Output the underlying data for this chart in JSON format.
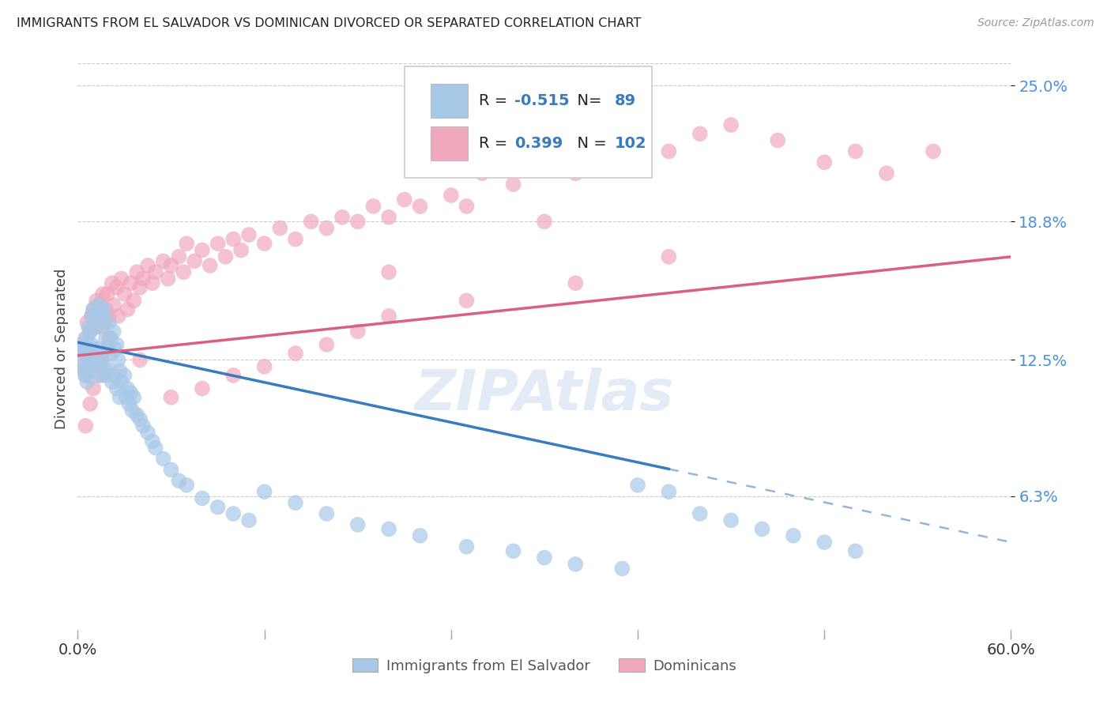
{
  "title": "IMMIGRANTS FROM EL SALVADOR VS DOMINICAN DIVORCED OR SEPARATED CORRELATION CHART",
  "source": "Source: ZipAtlas.com",
  "ylabel": "Divorced or Separated",
  "xlabel_blue": "Immigrants from El Salvador",
  "xlabel_pink": "Dominicans",
  "x_min": 0.0,
  "x_max": 0.6,
  "y_min": 0.0,
  "y_max": 0.26,
  "y_ticks": [
    0.063,
    0.125,
    0.188,
    0.25
  ],
  "y_tick_labels": [
    "6.3%",
    "12.5%",
    "18.8%",
    "25.0%"
  ],
  "legend_blue_R": "-0.515",
  "legend_blue_N": "89",
  "legend_pink_R": "0.399",
  "legend_pink_N": "102",
  "blue_color": "#a8c8e8",
  "pink_color": "#f0a8bc",
  "blue_line_color": "#3a7abf",
  "pink_line_color": "#d96080",
  "watermark": "ZIPAtlas",
  "blue_line_solid_end": 0.38,
  "blue_line_x0": 0.0,
  "blue_line_y0": 0.133,
  "blue_line_x1": 0.6,
  "blue_line_y1": 0.042,
  "pink_line_x0": 0.0,
  "pink_line_y0": 0.127,
  "pink_line_x1": 0.6,
  "pink_line_y1": 0.172,
  "blue_scatter_x": [
    0.002,
    0.003,
    0.004,
    0.004,
    0.005,
    0.005,
    0.006,
    0.006,
    0.006,
    0.007,
    0.007,
    0.007,
    0.008,
    0.008,
    0.009,
    0.009,
    0.01,
    0.01,
    0.011,
    0.011,
    0.012,
    0.012,
    0.013,
    0.013,
    0.014,
    0.014,
    0.015,
    0.015,
    0.016,
    0.016,
    0.017,
    0.017,
    0.018,
    0.018,
    0.019,
    0.02,
    0.02,
    0.021,
    0.022,
    0.022,
    0.023,
    0.024,
    0.024,
    0.025,
    0.025,
    0.026,
    0.027,
    0.027,
    0.028,
    0.03,
    0.031,
    0.032,
    0.033,
    0.034,
    0.035,
    0.036,
    0.038,
    0.04,
    0.042,
    0.045,
    0.048,
    0.05,
    0.055,
    0.06,
    0.065,
    0.07,
    0.08,
    0.09,
    0.1,
    0.11,
    0.12,
    0.14,
    0.16,
    0.18,
    0.2,
    0.22,
    0.25,
    0.28,
    0.3,
    0.32,
    0.35,
    0.36,
    0.38,
    0.4,
    0.42,
    0.44,
    0.46,
    0.48,
    0.5
  ],
  "blue_scatter_y": [
    0.132,
    0.125,
    0.13,
    0.12,
    0.128,
    0.118,
    0.135,
    0.122,
    0.115,
    0.14,
    0.13,
    0.12,
    0.138,
    0.125,
    0.145,
    0.132,
    0.148,
    0.128,
    0.145,
    0.12,
    0.14,
    0.125,
    0.15,
    0.13,
    0.148,
    0.118,
    0.145,
    0.128,
    0.142,
    0.125,
    0.148,
    0.122,
    0.135,
    0.118,
    0.13,
    0.142,
    0.12,
    0.135,
    0.128,
    0.115,
    0.138,
    0.13,
    0.118,
    0.132,
    0.112,
    0.125,
    0.12,
    0.108,
    0.115,
    0.118,
    0.108,
    0.112,
    0.105,
    0.11,
    0.102,
    0.108,
    0.1,
    0.098,
    0.095,
    0.092,
    0.088,
    0.085,
    0.08,
    0.075,
    0.07,
    0.068,
    0.062,
    0.058,
    0.055,
    0.052,
    0.065,
    0.06,
    0.055,
    0.05,
    0.048,
    0.045,
    0.04,
    0.038,
    0.035,
    0.032,
    0.03,
    0.068,
    0.065,
    0.055,
    0.052,
    0.048,
    0.045,
    0.042,
    0.038
  ],
  "pink_scatter_x": [
    0.002,
    0.003,
    0.004,
    0.005,
    0.005,
    0.006,
    0.007,
    0.007,
    0.008,
    0.008,
    0.009,
    0.009,
    0.01,
    0.01,
    0.011,
    0.012,
    0.012,
    0.013,
    0.014,
    0.015,
    0.015,
    0.016,
    0.017,
    0.018,
    0.019,
    0.02,
    0.02,
    0.022,
    0.023,
    0.025,
    0.026,
    0.028,
    0.03,
    0.032,
    0.034,
    0.036,
    0.038,
    0.04,
    0.042,
    0.045,
    0.048,
    0.05,
    0.055,
    0.058,
    0.06,
    0.065,
    0.068,
    0.07,
    0.075,
    0.08,
    0.085,
    0.09,
    0.095,
    0.1,
    0.105,
    0.11,
    0.12,
    0.13,
    0.14,
    0.15,
    0.16,
    0.17,
    0.18,
    0.19,
    0.2,
    0.21,
    0.22,
    0.24,
    0.26,
    0.28,
    0.3,
    0.32,
    0.35,
    0.38,
    0.4,
    0.42,
    0.45,
    0.48,
    0.5,
    0.52,
    0.55,
    0.3,
    0.2,
    0.25,
    0.32,
    0.38,
    0.2,
    0.18,
    0.16,
    0.14,
    0.12,
    0.1,
    0.08,
    0.06,
    0.04,
    0.02,
    0.015,
    0.01,
    0.008,
    0.005,
    0.3,
    0.25
  ],
  "pink_scatter_y": [
    0.13,
    0.122,
    0.128,
    0.135,
    0.118,
    0.142,
    0.13,
    0.12,
    0.138,
    0.125,
    0.145,
    0.13,
    0.148,
    0.122,
    0.14,
    0.152,
    0.128,
    0.145,
    0.15,
    0.14,
    0.125,
    0.155,
    0.142,
    0.148,
    0.155,
    0.145,
    0.132,
    0.16,
    0.15,
    0.158,
    0.145,
    0.162,
    0.155,
    0.148,
    0.16,
    0.152,
    0.165,
    0.158,
    0.162,
    0.168,
    0.16,
    0.165,
    0.17,
    0.162,
    0.168,
    0.172,
    0.165,
    0.178,
    0.17,
    0.175,
    0.168,
    0.178,
    0.172,
    0.18,
    0.175,
    0.182,
    0.178,
    0.185,
    0.18,
    0.188,
    0.185,
    0.19,
    0.188,
    0.195,
    0.19,
    0.198,
    0.195,
    0.2,
    0.21,
    0.205,
    0.215,
    0.21,
    0.218,
    0.22,
    0.228,
    0.232,
    0.225,
    0.215,
    0.22,
    0.21,
    0.22,
    0.188,
    0.165,
    0.152,
    0.16,
    0.172,
    0.145,
    0.138,
    0.132,
    0.128,
    0.122,
    0.118,
    0.112,
    0.108,
    0.125,
    0.135,
    0.118,
    0.112,
    0.105,
    0.095,
    0.212,
    0.195
  ]
}
